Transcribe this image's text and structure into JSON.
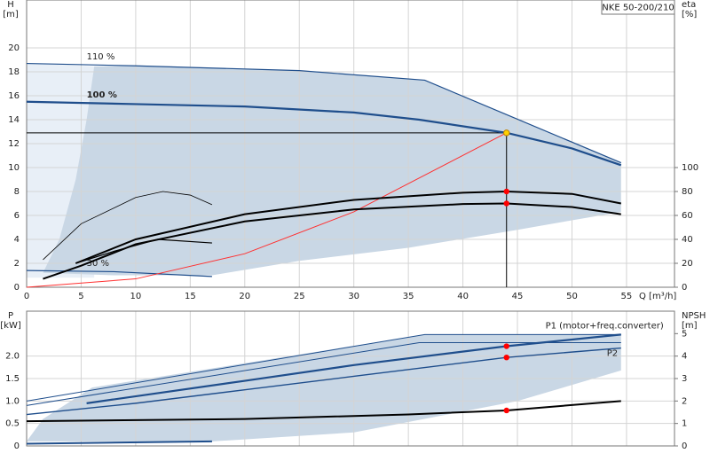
{
  "chart_data": [
    {
      "type": "line",
      "title": "NKE 50-200/210",
      "xlabel": "Q [m³/h]",
      "ylabel": [
        "H",
        "[m]"
      ],
      "y2label": [
        "eta",
        "[%]"
      ],
      "xlim": [
        0,
        59.4
      ],
      "ylim": [
        0,
        24
      ],
      "y2lim": [
        0,
        240
      ],
      "xticks": [
        0,
        5,
        10,
        15,
        20,
        25,
        30,
        35,
        40,
        45,
        50,
        55
      ],
      "x_tick_labels": true,
      "yticks": [
        0,
        2,
        4,
        6,
        8,
        10,
        12,
        14,
        16,
        18,
        20
      ],
      "y2ticks": [
        0,
        20,
        40,
        60,
        80,
        100
      ],
      "grid": true,
      "series": [
        {
          "fill": "#e8eff7",
          "x": [
            0,
            6.2,
            6.2,
            0
          ],
          "values": [
            18.7,
            18.45,
            0.8,
            0.8
          ]
        },
        {
          "fill": "#c9d7e5",
          "x": [
            1.5,
            3,
            4.5,
            5.5,
            6.2,
            10,
            25,
            36.5,
            54.5,
            54.5,
            45,
            35,
            25,
            17,
            8,
            1.5
          ],
          "values": [
            1.2,
            4,
            9,
            14,
            18.45,
            18.5,
            18.1,
            17.3,
            10.4,
            6.3,
            4.8,
            3.3,
            2.2,
            1.0,
            1.0,
            1.2
          ]
        },
        {
          "name": "110 %",
          "color": "#1f4e8c",
          "width": 1.2,
          "x": [
            0,
            10,
            25,
            36.5,
            54.5
          ],
          "values": [
            18.7,
            18.5,
            18.1,
            17.3,
            10.4
          ]
        },
        {
          "name": "100 %",
          "color": "#1f4e8c",
          "width": 2.2,
          "x": [
            0,
            10,
            20,
            30,
            36,
            44,
            50,
            54.5
          ],
          "values": [
            15.5,
            15.3,
            15.1,
            14.6,
            14,
            12.9,
            11.6,
            10.2
          ]
        },
        {
          "name": "30 %",
          "color": "#1f4e8c",
          "width": 1.2,
          "x": [
            0,
            8,
            17
          ],
          "values": [
            1.4,
            1.3,
            0.9
          ]
        },
        {
          "color": "#ff3030",
          "width": 1,
          "x": [
            0,
            10,
            20,
            30,
            44
          ],
          "values": [
            0,
            0.7,
            2.8,
            6.3,
            12.9
          ]
        },
        {
          "color": "#000000",
          "width": 2,
          "axis": "y2",
          "x": [
            4.5,
            10,
            20,
            30,
            40,
            44,
            50,
            54.5
          ],
          "values": [
            20,
            40,
            61,
            73,
            79,
            80,
            78,
            70
          ]
        },
        {
          "color": "#000000",
          "width": 2,
          "axis": "y2",
          "x": [
            1.5,
            5,
            10,
            20,
            30,
            40,
            44,
            50,
            54.5
          ],
          "values": [
            7,
            18,
            36,
            55,
            65,
            69.5,
            70,
            67,
            61
          ]
        },
        {
          "color": "#000000",
          "width": 0.8,
          "axis": "y2",
          "x": [
            1.5,
            5,
            10,
            12.5,
            15,
            17
          ],
          "values": [
            23,
            53,
            75,
            80,
            77,
            69
          ]
        },
        {
          "color": "#000000",
          "width": 1.2,
          "axis": "y2",
          "x": [
            4.5,
            8,
            12,
            17
          ],
          "values": [
            20,
            30,
            40,
            37
          ]
        }
      ],
      "operating_point": {
        "x": 44,
        "y": 12.9
      },
      "markers": [
        {
          "x": 44,
          "y": 12.9,
          "color": "#ffd200"
        },
        {
          "x": 44,
          "y": 80,
          "axis": "y2",
          "color": "#ff0000"
        },
        {
          "x": 44,
          "y": 70,
          "axis": "y2",
          "color": "#ff0000"
        }
      ]
    },
    {
      "type": "line",
      "ylabel": [
        "P",
        "[kW]"
      ],
      "y2label": [
        "NPSH",
        "[m]"
      ],
      "xlim": [
        0,
        59.4
      ],
      "ylim": [
        0,
        3
      ],
      "y2lim": [
        0,
        6
      ],
      "xticks": [
        0,
        5,
        10,
        15,
        20,
        25,
        30,
        35,
        40,
        45,
        50,
        55
      ],
      "x_tick_labels": false,
      "yticks": [
        0,
        0.5,
        {
          "value": 1,
          "label": "1.0"
        },
        1.5,
        {
          "value": 2,
          "label": "2.0"
        }
      ],
      "y2ticks": [
        0,
        1,
        2,
        3,
        4,
        5
      ],
      "grid": true,
      "series": [
        {
          "fill": "#c9d7e5",
          "x": [
            1.5,
            6,
            36.5,
            54.5,
            54.5,
            45,
            30,
            17,
            0
          ],
          "values": [
            0.6,
            1.3,
            2.48,
            2.48,
            1.68,
            1.0,
            0.3,
            0.1,
            0.1
          ]
        },
        {
          "color": "#1f4e8c",
          "width": 1,
          "x": [
            0,
            36.5,
            54.5
          ],
          "values": [
            1.0,
            2.48,
            2.48
          ]
        },
        {
          "color": "#1f4e8c",
          "width": 1,
          "x": [
            0,
            36,
            54.5
          ],
          "values": [
            0.9,
            2.3,
            2.3
          ]
        },
        {
          "name": "P1 (motor+freq.converter)",
          "color": "#1f4e8c",
          "width": 2.2,
          "x": [
            5.5,
            20,
            30,
            44,
            54.5
          ],
          "values": [
            0.95,
            1.45,
            1.8,
            2.22,
            2.48
          ]
        },
        {
          "name": "P2",
          "color": "#1f4e8c",
          "width": 1.4,
          "x": [
            0,
            10,
            20,
            30,
            44,
            54.5
          ],
          "values": [
            0.7,
            0.95,
            1.25,
            1.55,
            1.97,
            2.18
          ]
        },
        {
          "color": "#1f4e8c",
          "width": 2,
          "x": [
            0,
            17
          ],
          "values": [
            0.05,
            0.1
          ]
        },
        {
          "color": "#000000",
          "width": 2,
          "axis": "y2",
          "x": [
            0,
            20,
            35,
            44,
            54.5
          ],
          "values": [
            1.1,
            1.2,
            1.4,
            1.58,
            2.0
          ]
        }
      ],
      "markers": [
        {
          "x": 44,
          "y": 2.22,
          "color": "#ff0000"
        },
        {
          "x": 44,
          "y": 1.97,
          "color": "#ff0000"
        },
        {
          "x": 44,
          "y": 1.58,
          "axis": "y2",
          "color": "#ff0000"
        }
      ]
    }
  ]
}
